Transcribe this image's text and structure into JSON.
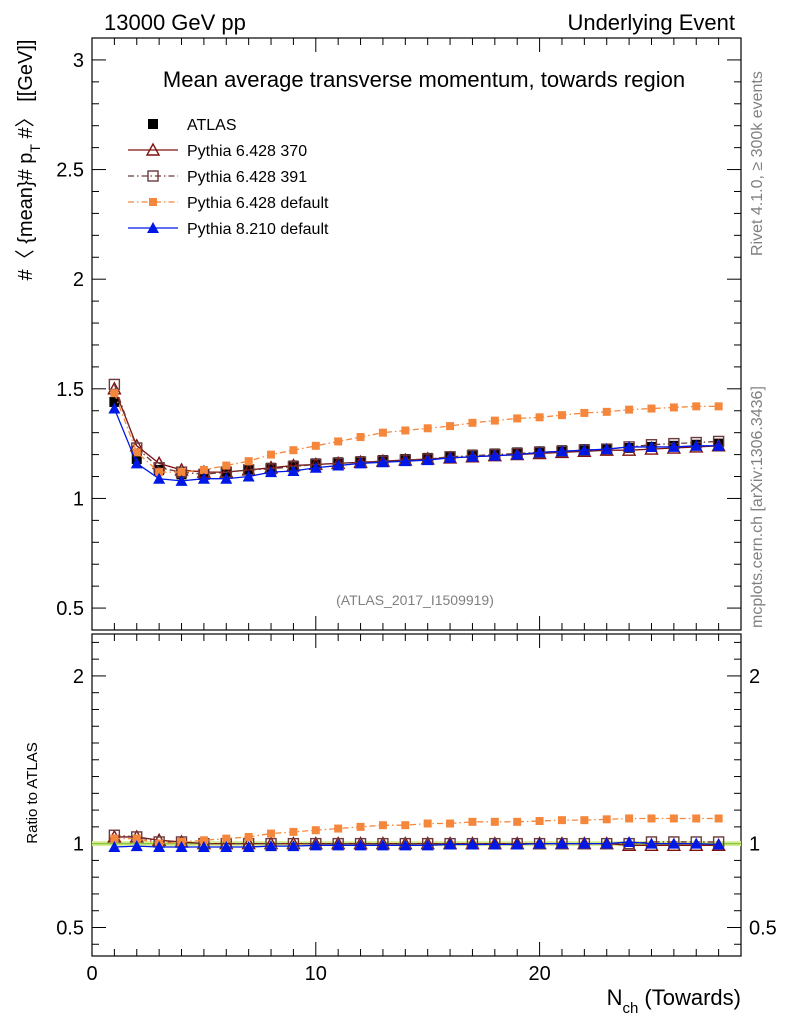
{
  "header": {
    "left": "13000 GeV pp",
    "right": "Underlying Event"
  },
  "side_labels": {
    "rivet": "Rivet 4.1.0, ≥ 300k events",
    "mcplots": "mcplots.cern.ch [arXiv:1306.3436]"
  },
  "colors": {
    "ATLAS": "#000000",
    "Pythia 6.428 370": "#7f1010",
    "Pythia 6.428 391": "#6b3a3a",
    "Pythia 6.428 default": "#f5873c",
    "Pythia 8.210 default": "#0018e6",
    "ratio_ref": "#8cc63f"
  },
  "chart_data": [
    {
      "type": "line",
      "title": "Mean average transverse momentum, towards region",
      "watermark": "(ATLAS_2017_I1509919)",
      "ylabel": "#〈{mean}# p_T #〉 [[GeV]]",
      "ylabel_main": "#〈 {mean}# p",
      "ylabel_sub": "T",
      "ylabel_tail": " #〉 [[GeV]]",
      "xlim": [
        0,
        29
      ],
      "ylim": [
        0.4,
        3.1
      ],
      "yticks": [
        0.5,
        1,
        1.5,
        2,
        2.5,
        3
      ],
      "ytick_labels": [
        "0.5",
        "1",
        "1.5",
        "2",
        "2.5",
        "3"
      ],
      "legend": [
        "ATLAS",
        "Pythia 6.428 370",
        "Pythia 6.428 391",
        "Pythia 6.428 default",
        "Pythia 8.210 default"
      ],
      "x": [
        1,
        2,
        3,
        4,
        5,
        6,
        7,
        8,
        9,
        10,
        11,
        12,
        13,
        14,
        15,
        16,
        17,
        18,
        19,
        20,
        21,
        22,
        23,
        24,
        25,
        26,
        27,
        28
      ],
      "series": [
        {
          "name": "ATLAS",
          "marker": "square-filled",
          "values": [
            1.44,
            1.18,
            1.13,
            1.11,
            1.11,
            1.12,
            1.13,
            1.14,
            1.15,
            1.16,
            1.165,
            1.17,
            1.175,
            1.18,
            1.185,
            1.19,
            1.2,
            1.205,
            1.21,
            1.215,
            1.22,
            1.225,
            1.225,
            1.23,
            1.235,
            1.24,
            1.245,
            1.25
          ]
        },
        {
          "name": "Pythia 6.428 370",
          "marker": "triangle-open",
          "values": [
            1.5,
            1.24,
            1.16,
            1.13,
            1.12,
            1.12,
            1.13,
            1.14,
            1.15,
            1.155,
            1.16,
            1.165,
            1.17,
            1.175,
            1.18,
            1.185,
            1.19,
            1.195,
            1.2,
            1.205,
            1.21,
            1.215,
            1.22,
            1.22,
            1.225,
            1.23,
            1.235,
            1.24
          ]
        },
        {
          "name": "Pythia 6.428 391",
          "marker": "square-open",
          "values": [
            1.52,
            1.23,
            1.14,
            1.12,
            1.11,
            1.12,
            1.13,
            1.135,
            1.145,
            1.155,
            1.16,
            1.165,
            1.17,
            1.175,
            1.18,
            1.19,
            1.195,
            1.2,
            1.205,
            1.21,
            1.215,
            1.22,
            1.225,
            1.235,
            1.245,
            1.25,
            1.255,
            1.26
          ]
        },
        {
          "name": "Pythia 6.428 default",
          "marker": "square-filled-small",
          "values": [
            1.48,
            1.21,
            1.12,
            1.12,
            1.13,
            1.15,
            1.17,
            1.2,
            1.22,
            1.24,
            1.26,
            1.28,
            1.3,
            1.31,
            1.32,
            1.33,
            1.345,
            1.355,
            1.365,
            1.37,
            1.38,
            1.39,
            1.395,
            1.405,
            1.41,
            1.415,
            1.42,
            1.42
          ]
        },
        {
          "name": "Pythia 8.210 default",
          "marker": "triangle-filled",
          "values": [
            1.41,
            1.16,
            1.09,
            1.08,
            1.09,
            1.09,
            1.1,
            1.12,
            1.125,
            1.14,
            1.15,
            1.16,
            1.165,
            1.17,
            1.175,
            1.185,
            1.19,
            1.195,
            1.2,
            1.21,
            1.215,
            1.22,
            1.225,
            1.235,
            1.235,
            1.235,
            1.24,
            1.24
          ]
        }
      ]
    },
    {
      "type": "line",
      "title": "",
      "ylabel": "Ratio to ATLAS",
      "xlabel": "N_ch (Towards)",
      "xlabel_main": "N",
      "xlabel_sub": "ch",
      "xlabel_tail": " (Towards)",
      "xlim": [
        0,
        29
      ],
      "xticks": [
        0,
        10,
        20
      ],
      "xtick_labels": [
        "0",
        "10",
        "20"
      ],
      "ylim": [
        0.33,
        2.25
      ],
      "yticks": [
        0.5,
        1,
        2
      ],
      "ytick_labels": [
        "0.5",
        "1",
        "2"
      ],
      "x": [
        1,
        2,
        3,
        4,
        5,
        6,
        7,
        8,
        9,
        10,
        11,
        12,
        13,
        14,
        15,
        16,
        17,
        18,
        19,
        20,
        21,
        22,
        23,
        24,
        25,
        26,
        27,
        28
      ],
      "series": [
        {
          "name": "Pythia 6.428 370",
          "marker": "triangle-open",
          "values": [
            1.04,
            1.04,
            1.02,
            1.01,
            1.0,
            1.0,
            1.0,
            1.0,
            1.0,
            1.0,
            1.0,
            1.0,
            1.0,
            1.0,
            1.0,
            1.0,
            1.0,
            1.0,
            1.0,
            1.0,
            1.0,
            1.0,
            1.0,
            0.99,
            0.99,
            0.99,
            0.99,
            0.99
          ]
        },
        {
          "name": "Pythia 6.428 391",
          "marker": "square-open",
          "values": [
            1.05,
            1.04,
            1.01,
            1.01,
            1.0,
            1.0,
            1.0,
            1.0,
            1.0,
            1.0,
            1.0,
            1.0,
            1.0,
            1.0,
            1.0,
            1.0,
            1.0,
            1.0,
            1.0,
            1.0,
            1.0,
            1.0,
            1.0,
            1.0,
            1.01,
            1.01,
            1.01,
            1.01
          ]
        },
        {
          "name": "Pythia 6.428 default",
          "marker": "square-filled-small",
          "values": [
            1.03,
            1.03,
            1.0,
            1.01,
            1.02,
            1.03,
            1.04,
            1.06,
            1.07,
            1.08,
            1.09,
            1.1,
            1.11,
            1.11,
            1.12,
            1.12,
            1.13,
            1.13,
            1.13,
            1.135,
            1.14,
            1.14,
            1.145,
            1.15,
            1.15,
            1.15,
            1.15,
            1.15
          ]
        },
        {
          "name": "Pythia 8.210 default",
          "marker": "triangle-filled",
          "values": [
            0.98,
            0.985,
            0.98,
            0.98,
            0.98,
            0.98,
            0.98,
            0.985,
            0.985,
            0.99,
            0.99,
            0.99,
            0.99,
            0.99,
            0.99,
            0.995,
            0.995,
            0.995,
            0.995,
            1.0,
            1.0,
            1.0,
            1.0,
            1.01,
            1.0,
            1.0,
            1.0,
            0.995
          ]
        }
      ]
    }
  ]
}
